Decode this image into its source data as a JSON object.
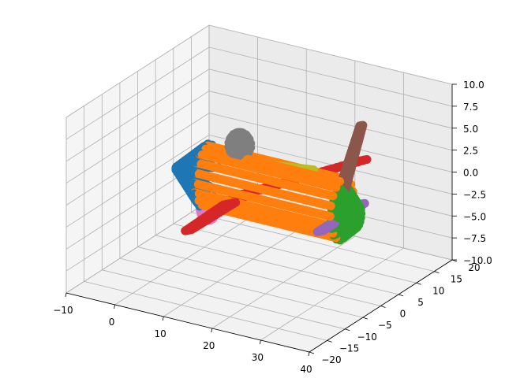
{
  "chart_data": {
    "type": "scatter",
    "projection": "3d",
    "grid": true,
    "title": "",
    "xlabel": "",
    "ylabel": "",
    "zlabel": "",
    "axes": {
      "x": {
        "range": [
          -10,
          40
        ],
        "ticks": [
          -10,
          0,
          10,
          20,
          30,
          40
        ],
        "tick_labels": [
          "−10",
          "0",
          "10",
          "20",
          "30",
          "40"
        ]
      },
      "y": {
        "range": [
          -20,
          20
        ],
        "ticks": [
          -20,
          -15,
          -10,
          -5,
          0,
          5,
          10,
          15,
          20
        ],
        "tick_labels": [
          "−20",
          "−15",
          "−10",
          "−5",
          "0",
          "5",
          "10",
          "15",
          "20"
        ]
      },
      "z": {
        "range": [
          -10,
          10
        ],
        "ticks": [
          -10,
          -7.5,
          -5,
          -2.5,
          0,
          2.5,
          5,
          7.5,
          10
        ],
        "tick_labels": [
          "−10.0",
          "−7.5",
          "−5.0",
          "−2.5",
          "0.0",
          "2.5",
          "5.0",
          "7.5",
          "10.0"
        ]
      }
    },
    "parts": [
      {
        "part": "nose",
        "color": "#1f77b4",
        "shape": "cone",
        "x": [
          -2,
          4
        ],
        "radius": [
          0.2,
          3.5
        ],
        "center": [
          0,
          0
        ]
      },
      {
        "part": "fuselage",
        "color": "#ff7f0e",
        "shape": "cylinder",
        "x": [
          4,
          32
        ],
        "radius": 3.3,
        "center": [
          0,
          0
        ]
      },
      {
        "part": "tail-cone",
        "color": "#2ca02c",
        "shape": "cone",
        "x": [
          32,
          35
        ],
        "radius": [
          3.0,
          1.3
        ],
        "center": [
          0,
          -0.5
        ]
      },
      {
        "part": "canopy",
        "color": "#7f7f7f",
        "shape": "blob",
        "x": [
          9,
          13
        ],
        "y": [
          -1.5,
          1.5
        ],
        "z": [
          3,
          5.8
        ]
      },
      {
        "part": "left-wing",
        "color": "#d62728",
        "shape": "strip",
        "from": [
          12,
          0,
          -1
        ],
        "to": [
          10,
          -13,
          -2
        ],
        "width": 3
      },
      {
        "part": "right-wing",
        "color": "#d62728",
        "shape": "strip",
        "from": [
          12,
          0,
          -1
        ],
        "to": [
          24,
          17,
          0
        ],
        "width": 3
      },
      {
        "part": "vertical-stabilizer",
        "color": "#8c564b",
        "shape": "strip",
        "from": [
          32,
          0,
          2
        ],
        "to": [
          36,
          0,
          10
        ],
        "width": 1.5
      },
      {
        "part": "horizontal-stabilizer",
        "color": "#9467bd",
        "shape": "strip",
        "from": [
          32,
          -6,
          -1
        ],
        "to": [
          32,
          6,
          -1
        ],
        "width": 1.3
      },
      {
        "part": "ventral-fin",
        "color": "#e377c2",
        "shape": "blob",
        "x": [
          3,
          6
        ],
        "y": [
          -1,
          1
        ],
        "z": [
          -5,
          -2.5
        ]
      },
      {
        "part": "dorsal-spine",
        "color": "#bcbd22",
        "shape": "strip",
        "from": [
          18,
          0,
          3
        ],
        "to": [
          26,
          0,
          3.6
        ],
        "width": 0.8
      }
    ]
  }
}
